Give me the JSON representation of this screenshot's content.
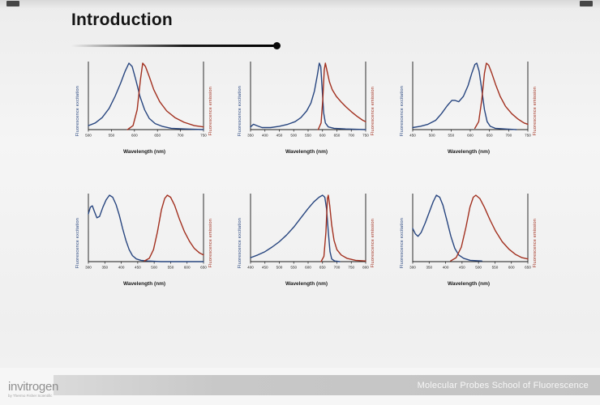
{
  "slide": {
    "title": "Introduction",
    "footer_right": "Molecular Probes School of Fluorescence",
    "brand": {
      "name": "invitrogen",
      "sub": "by Thermo Fisher Scientific"
    }
  },
  "colors": {
    "excitation": "#27457f",
    "emission": "#a2301f",
    "axis": "#1a1a1a"
  },
  "chart_data": [
    {
      "type": "line",
      "ylabel_left": "Fluorescence excitation",
      "ylabel_right": "Fluorescence emission",
      "xlabel": "Wavelength (nm)",
      "xlim": [
        500,
        750
      ],
      "xticks": [
        500,
        550,
        600,
        650,
        700,
        750
      ],
      "series": [
        {
          "name": "excitation",
          "color": "#27457f",
          "points": [
            [
              500,
              0.06
            ],
            [
              515,
              0.1
            ],
            [
              530,
              0.18
            ],
            [
              545,
              0.32
            ],
            [
              558,
              0.5
            ],
            [
              570,
              0.7
            ],
            [
              580,
              0.88
            ],
            [
              588,
              1.0
            ],
            [
              595,
              0.95
            ],
            [
              603,
              0.75
            ],
            [
              612,
              0.5
            ],
            [
              622,
              0.3
            ],
            [
              632,
              0.17
            ],
            [
              645,
              0.09
            ],
            [
              660,
              0.05
            ],
            [
              680,
              0.02
            ],
            [
              710,
              0.01
            ],
            [
              750,
              0.0
            ]
          ]
        },
        {
          "name": "emission",
          "color": "#a2301f",
          "points": [
            [
              585,
              0.0
            ],
            [
              597,
              0.06
            ],
            [
              606,
              0.3
            ],
            [
              613,
              0.75
            ],
            [
              618,
              1.0
            ],
            [
              624,
              0.95
            ],
            [
              632,
              0.8
            ],
            [
              642,
              0.6
            ],
            [
              655,
              0.42
            ],
            [
              670,
              0.28
            ],
            [
              688,
              0.18
            ],
            [
              708,
              0.11
            ],
            [
              730,
              0.06
            ],
            [
              750,
              0.04
            ]
          ]
        }
      ]
    },
    {
      "type": "line",
      "ylabel_left": "Fluorescence excitation",
      "ylabel_right": "Fluorescence emission",
      "xlabel": "Wavelength (nm)",
      "xlim": [
        350,
        750
      ],
      "xticks": [
        350,
        400,
        450,
        500,
        550,
        600,
        650,
        700,
        750
      ],
      "series": [
        {
          "name": "excitation",
          "color": "#27457f",
          "points": [
            [
              350,
              0.04
            ],
            [
              360,
              0.08
            ],
            [
              372,
              0.06
            ],
            [
              390,
              0.03
            ],
            [
              420,
              0.03
            ],
            [
              450,
              0.05
            ],
            [
              480,
              0.08
            ],
            [
              505,
              0.12
            ],
            [
              525,
              0.18
            ],
            [
              545,
              0.28
            ],
            [
              560,
              0.4
            ],
            [
              572,
              0.58
            ],
            [
              582,
              0.82
            ],
            [
              589,
              1.0
            ],
            [
              594,
              0.95
            ],
            [
              599,
              0.6
            ],
            [
              604,
              0.25
            ],
            [
              610,
              0.1
            ],
            [
              620,
              0.04
            ],
            [
              640,
              0.02
            ],
            [
              680,
              0.01
            ],
            [
              750,
              0.0
            ]
          ]
        },
        {
          "name": "emission",
          "color": "#a2301f",
          "points": [
            [
              585,
              0.0
            ],
            [
              595,
              0.1
            ],
            [
              601,
              0.45
            ],
            [
              606,
              0.9
            ],
            [
              610,
              1.0
            ],
            [
              616,
              0.88
            ],
            [
              624,
              0.72
            ],
            [
              634,
              0.6
            ],
            [
              648,
              0.5
            ],
            [
              664,
              0.42
            ],
            [
              682,
              0.34
            ],
            [
              700,
              0.27
            ],
            [
              720,
              0.2
            ],
            [
              740,
              0.14
            ],
            [
              750,
              0.12
            ]
          ]
        }
      ]
    },
    {
      "type": "line",
      "ylabel_left": "Fluorescence excitation",
      "ylabel_right": "Fluorescence emission",
      "xlabel": "Wavelength (nm)",
      "xlim": [
        450,
        750
      ],
      "xticks": [
        450,
        500,
        550,
        600,
        650,
        700,
        750
      ],
      "series": [
        {
          "name": "excitation",
          "color": "#27457f",
          "points": [
            [
              450,
              0.03
            ],
            [
              470,
              0.05
            ],
            [
              490,
              0.08
            ],
            [
              510,
              0.14
            ],
            [
              525,
              0.24
            ],
            [
              540,
              0.36
            ],
            [
              552,
              0.44
            ],
            [
              560,
              0.44
            ],
            [
              570,
              0.42
            ],
            [
              582,
              0.5
            ],
            [
              594,
              0.66
            ],
            [
              604,
              0.85
            ],
            [
              612,
              0.98
            ],
            [
              617,
              1.0
            ],
            [
              623,
              0.88
            ],
            [
              630,
              0.6
            ],
            [
              637,
              0.3
            ],
            [
              644,
              0.12
            ],
            [
              652,
              0.05
            ],
            [
              665,
              0.02
            ],
            [
              690,
              0.01
            ],
            [
              720,
              0.0
            ]
          ]
        },
        {
          "name": "emission",
          "color": "#a2301f",
          "points": [
            [
              612,
              0.02
            ],
            [
              622,
              0.12
            ],
            [
              630,
              0.45
            ],
            [
              637,
              0.85
            ],
            [
              642,
              1.0
            ],
            [
              648,
              0.97
            ],
            [
              656,
              0.85
            ],
            [
              666,
              0.68
            ],
            [
              678,
              0.5
            ],
            [
              692,
              0.35
            ],
            [
              708,
              0.24
            ],
            [
              724,
              0.16
            ],
            [
              740,
              0.1
            ],
            [
              750,
              0.08
            ]
          ]
        }
      ]
    },
    {
      "type": "line",
      "ylabel_left": "Fluorescence excitation",
      "ylabel_right": "Fluorescence emission",
      "xlabel": "Wavelength (nm)",
      "xlim": [
        300,
        650
      ],
      "xticks": [
        300,
        350,
        400,
        450,
        500,
        550,
        600,
        650
      ],
      "series": [
        {
          "name": "excitation",
          "color": "#27457f",
          "points": [
            [
              300,
              0.72
            ],
            [
              306,
              0.82
            ],
            [
              312,
              0.84
            ],
            [
              318,
              0.76
            ],
            [
              326,
              0.66
            ],
            [
              334,
              0.68
            ],
            [
              344,
              0.82
            ],
            [
              354,
              0.93
            ],
            [
              364,
              1.0
            ],
            [
              374,
              0.97
            ],
            [
              384,
              0.86
            ],
            [
              394,
              0.7
            ],
            [
              404,
              0.5
            ],
            [
              414,
              0.32
            ],
            [
              424,
              0.18
            ],
            [
              434,
              0.09
            ],
            [
              446,
              0.04
            ],
            [
              460,
              0.02
            ],
            [
              480,
              0.01
            ],
            [
              520,
              0.0
            ],
            [
              650,
              0.0
            ]
          ]
        },
        {
          "name": "emission",
          "color": "#a2301f",
          "points": [
            [
              470,
              0.01
            ],
            [
              485,
              0.05
            ],
            [
              498,
              0.18
            ],
            [
              510,
              0.45
            ],
            [
              522,
              0.78
            ],
            [
              532,
              0.95
            ],
            [
              540,
              1.0
            ],
            [
              550,
              0.97
            ],
            [
              562,
              0.85
            ],
            [
              576,
              0.65
            ],
            [
              592,
              0.45
            ],
            [
              608,
              0.3
            ],
            [
              622,
              0.2
            ],
            [
              638,
              0.13
            ],
            [
              650,
              0.1
            ]
          ]
        }
      ]
    },
    {
      "type": "line",
      "ylabel_left": "Fluorescence excitation",
      "ylabel_right": "Fluorescence emission",
      "xlabel": "Wavelength (nm)",
      "xlim": [
        400,
        800
      ],
      "xticks": [
        400,
        450,
        500,
        550,
        600,
        650,
        700,
        750,
        800
      ],
      "series": [
        {
          "name": "excitation",
          "color": "#27457f",
          "points": [
            [
              400,
              0.06
            ],
            [
              425,
              0.1
            ],
            [
              450,
              0.15
            ],
            [
              475,
              0.22
            ],
            [
              500,
              0.3
            ],
            [
              525,
              0.4
            ],
            [
              550,
              0.52
            ],
            [
              575,
              0.66
            ],
            [
              600,
              0.8
            ],
            [
              620,
              0.9
            ],
            [
              638,
              0.97
            ],
            [
              650,
              1.0
            ],
            [
              658,
              0.97
            ],
            [
              664,
              0.8
            ],
            [
              670,
              0.45
            ],
            [
              676,
              0.15
            ],
            [
              682,
              0.04
            ],
            [
              692,
              0.01
            ],
            [
              710,
              0.0
            ]
          ]
        },
        {
          "name": "emission",
          "color": "#a2301f",
          "points": [
            [
              645,
              0.0
            ],
            [
              655,
              0.08
            ],
            [
              662,
              0.45
            ],
            [
              667,
              0.95
            ],
            [
              670,
              1.0
            ],
            [
              675,
              0.85
            ],
            [
              682,
              0.55
            ],
            [
              690,
              0.32
            ],
            [
              700,
              0.18
            ],
            [
              715,
              0.1
            ],
            [
              735,
              0.05
            ],
            [
              765,
              0.02
            ],
            [
              800,
              0.01
            ]
          ]
        }
      ]
    },
    {
      "type": "line",
      "ylabel_left": "Fluorescence excitation",
      "ylabel_right": "Fluorescence emission",
      "xlabel": "Wavelength (nm)",
      "xlim": [
        300,
        650
      ],
      "xticks": [
        300,
        350,
        400,
        450,
        500,
        550,
        600,
        650
      ],
      "series": [
        {
          "name": "excitation",
          "color": "#27457f",
          "points": [
            [
              300,
              0.5
            ],
            [
              308,
              0.42
            ],
            [
              316,
              0.38
            ],
            [
              326,
              0.44
            ],
            [
              338,
              0.58
            ],
            [
              350,
              0.74
            ],
            [
              362,
              0.9
            ],
            [
              372,
              1.0
            ],
            [
              382,
              0.97
            ],
            [
              392,
              0.85
            ],
            [
              404,
              0.62
            ],
            [
              416,
              0.38
            ],
            [
              428,
              0.2
            ],
            [
              440,
              0.1
            ],
            [
              455,
              0.05
            ],
            [
              475,
              0.02
            ],
            [
              510,
              0.01
            ]
          ]
        },
        {
          "name": "emission",
          "color": "#a2301f",
          "points": [
            [
              415,
              0.01
            ],
            [
              432,
              0.06
            ],
            [
              448,
              0.22
            ],
            [
              462,
              0.52
            ],
            [
              474,
              0.82
            ],
            [
              484,
              0.97
            ],
            [
              492,
              1.0
            ],
            [
              504,
              0.95
            ],
            [
              518,
              0.82
            ],
            [
              534,
              0.64
            ],
            [
              552,
              0.46
            ],
            [
              572,
              0.3
            ],
            [
              592,
              0.19
            ],
            [
              612,
              0.11
            ],
            [
              632,
              0.06
            ],
            [
              650,
              0.04
            ]
          ]
        }
      ]
    }
  ]
}
